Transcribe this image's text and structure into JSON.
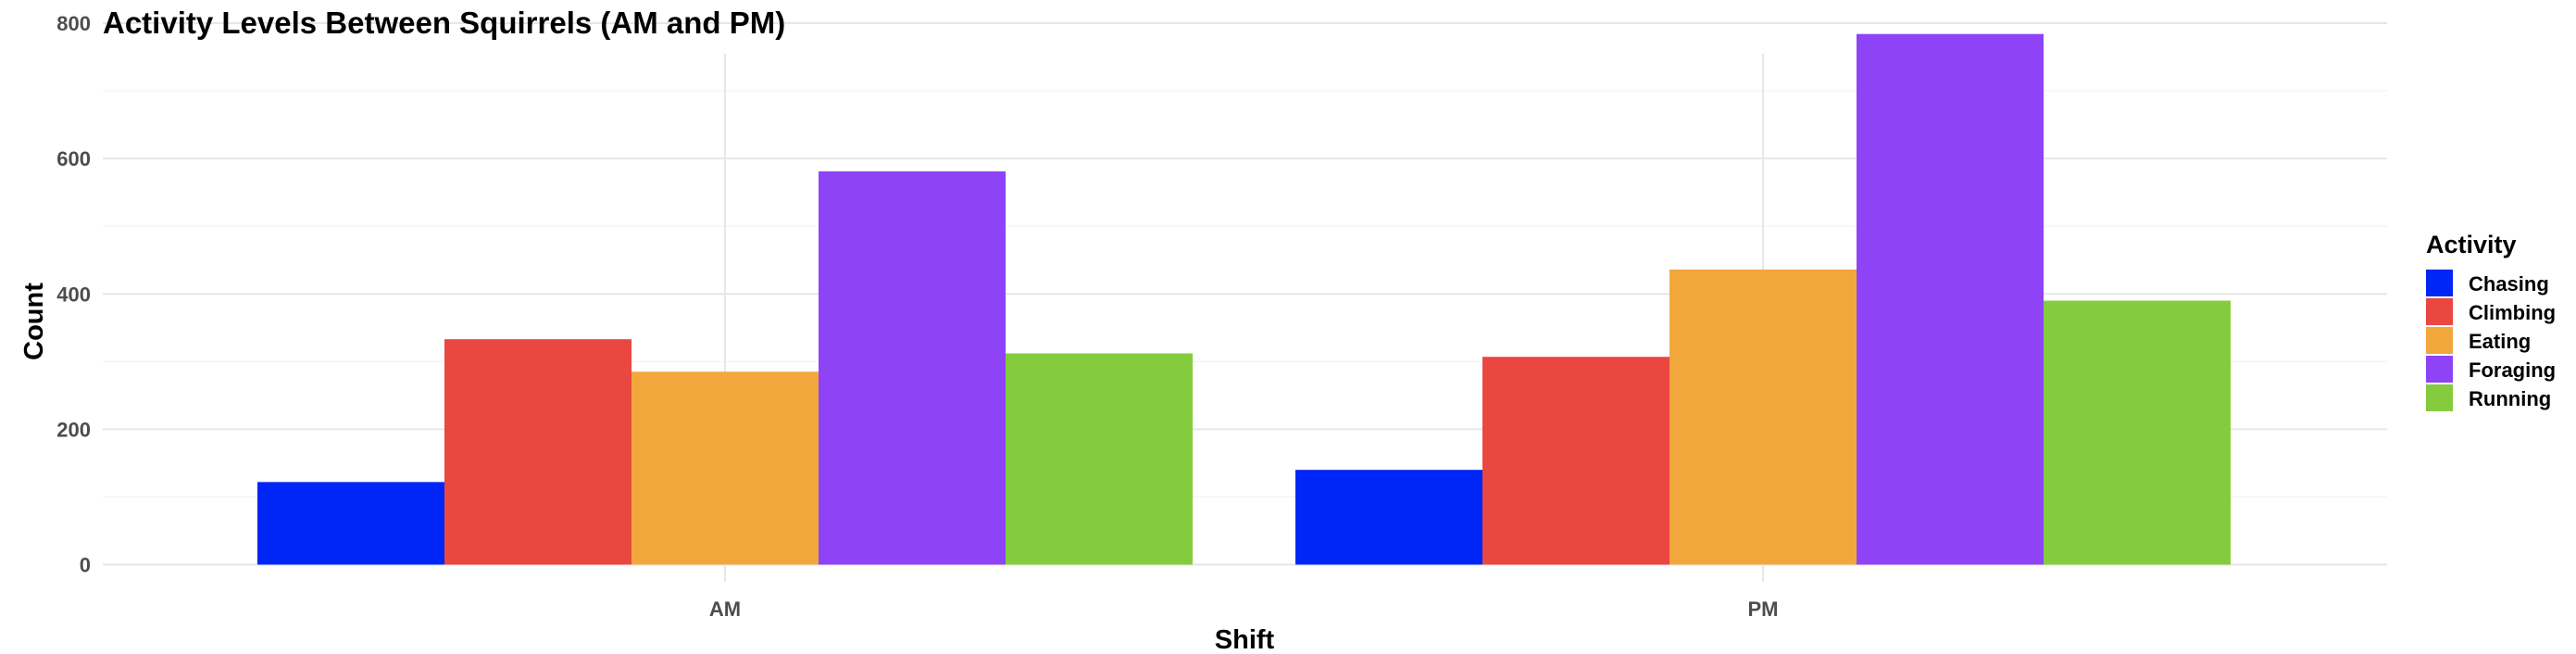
{
  "chart_data": {
    "type": "bar",
    "title": "Activity Levels Between Squirrels (AM and PM)",
    "xlabel": "Shift",
    "ylabel": "Count",
    "categories": [
      "AM",
      "PM"
    ],
    "ylim": [
      0,
      820
    ],
    "yticks": [
      0,
      200,
      400,
      600,
      800
    ],
    "grid": true,
    "legend": {
      "title": "Activity",
      "position": "right"
    },
    "series": [
      {
        "name": "Chasing",
        "color": "#0026f5",
        "values": [
          122,
          140
        ]
      },
      {
        "name": "Climbing",
        "color": "#ea4740",
        "values": [
          333,
          307
        ]
      },
      {
        "name": "Eating",
        "color": "#f2a73d",
        "values": [
          285,
          436
        ]
      },
      {
        "name": "Foraging",
        "color": "#8e44f6",
        "values": [
          581,
          784
        ]
      },
      {
        "name": "Running",
        "color": "#84cc3e",
        "values": [
          312,
          390
        ]
      }
    ]
  }
}
